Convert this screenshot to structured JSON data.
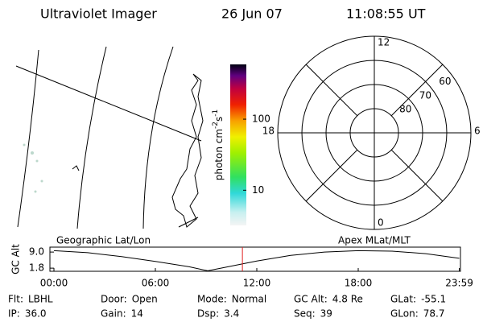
{
  "header": {
    "title": "Ultraviolet Imager",
    "date": "26 Jun 07",
    "time": "11:08:55 UT"
  },
  "colorbar": {
    "label_main": "photon cm",
    "label_sup1": "-2",
    "label_s": "s",
    "label_sup2": "-1",
    "log": true,
    "lim": [
      3.2,
      590
    ],
    "ticks": [
      10,
      100
    ]
  },
  "polar": {
    "rlim": [
      90,
      50
    ],
    "lat_ticks": [
      60,
      70,
      80
    ],
    "mlt_ticks": [
      12,
      6,
      0,
      18
    ]
  },
  "altitude_plot": {
    "left_title": "Geographic Lat/Lon",
    "right_title": "Apex MLat/MLT",
    "ylabel": "GC Alt",
    "ylim": [
      0.4,
      11.2
    ],
    "yticks": [
      {
        "value": 9,
        "label": "9.0"
      },
      1.8
    ],
    "xlim": [
      0,
      24
    ],
    "xticks": [
      {
        "value": 0,
        "label": "00:00"
      },
      {
        "value": 6,
        "label": "06:00"
      },
      {
        "value": 12,
        "label": "12:00"
      },
      {
        "value": 18,
        "label": "18:00"
      },
      {
        "value": 23.98,
        "label": "23:59"
      }
    ],
    "x": [
      0,
      2,
      4,
      6,
      8,
      9.1,
      10,
      12,
      14,
      16,
      18,
      20,
      22,
      23.98
    ],
    "values": [
      9.6,
      8.7,
      7.0,
      4.8,
      2.4,
      0.6,
      2.0,
      5.0,
      7.5,
      9.0,
      9.6,
      9.4,
      8.3,
      6.2
    ],
    "marker_x": 11.149,
    "marker_color": "#e02020"
  },
  "info": [
    [
      {
        "label": "Flt:",
        "value": "LBHL"
      },
      {
        "label": "Door:",
        "value": "Open"
      },
      {
        "label": "Mode:",
        "value": "Normal"
      },
      {
        "label": "GC Alt:",
        "value": "4.8 Re"
      },
      {
        "label": "GLat:",
        "value": "-55.1"
      }
    ],
    [
      {
        "label": "IP:",
        "value": "36.0"
      },
      {
        "label": "Gain:",
        "value": "14"
      },
      {
        "label": "Dsp:",
        "value": "3.4"
      },
      {
        "label": "Seq:",
        "value": "39"
      },
      {
        "label": "GLon:",
        "value": "78.7"
      }
    ]
  ]
}
